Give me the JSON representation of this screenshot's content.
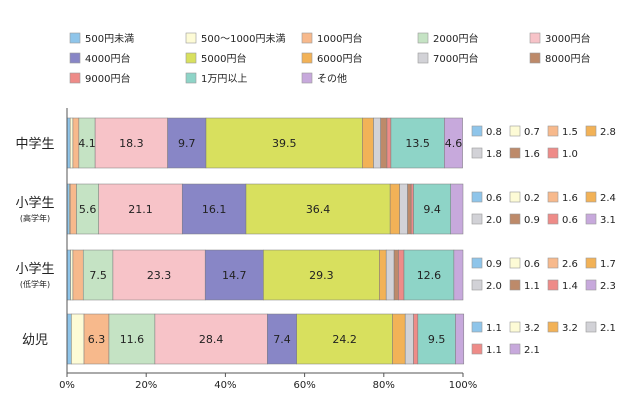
{
  "chart_data": {
    "type": "bar",
    "orientation": "horizontal",
    "stacked": true,
    "xlim": [
      0,
      100
    ],
    "x_ticks": [
      "0%",
      "20%",
      "40%",
      "60%",
      "80%",
      "100%"
    ],
    "series_names": [
      "500円未満",
      "500〜1000円未満",
      "1000円台",
      "2000円台",
      "3000円台",
      "4000円台",
      "5000円台",
      "6000円台",
      "7000円台",
      "8000円台",
      "9000円台",
      "1万円以上",
      "その他"
    ],
    "colors": [
      "#8fc5ea",
      "#fdfbd6",
      "#f7b98c",
      "#c5e3c4",
      "#f7c3c8",
      "#8886c6",
      "#d8e05e",
      "#f2b257",
      "#d2d2d7",
      "#bd8a6a",
      "#ee8b88",
      "#8ed4c7",
      "#c7a9dc"
    ],
    "categories": [
      {
        "name": "中学生",
        "sub": "",
        "values": [
          0.8,
          0.7,
          1.5,
          4.1,
          18.3,
          9.7,
          39.5,
          2.8,
          1.8,
          1.6,
          1.0,
          13.5,
          4.6
        ],
        "side_labels": [
          "0.8",
          "0.7",
          "1.5",
          "2.8",
          "1.8",
          "1.6",
          "1.0"
        ]
      },
      {
        "name": "小学生",
        "sub": "(高学年)",
        "values": [
          0.6,
          0.2,
          1.6,
          5.6,
          21.1,
          16.1,
          36.4,
          2.4,
          2.0,
          0.9,
          0.6,
          9.4,
          3.1
        ],
        "side_labels": [
          "0.6",
          "0.2",
          "1.6",
          "2.4",
          "2.0",
          "0.9",
          "0.6",
          "3.1"
        ]
      },
      {
        "name": "小学生",
        "sub": "(低学年)",
        "values": [
          0.9,
          0.6,
          2.6,
          7.5,
          23.3,
          14.7,
          29.3,
          1.7,
          2.0,
          1.1,
          1.4,
          12.6,
          2.3
        ],
        "side_labels": [
          "0.9",
          "0.6",
          "2.6",
          "1.7",
          "2.0",
          "1.1",
          "1.4",
          "2.3"
        ]
      },
      {
        "name": "幼児",
        "sub": "",
        "values": [
          1.1,
          3.2,
          6.3,
          11.6,
          28.4,
          7.4,
          24.2,
          3.2,
          2.1,
          0.0,
          1.1,
          9.5,
          2.1
        ],
        "side_labels": [
          "1.1",
          "3.2",
          "3.2",
          "2.1",
          "1.1",
          "2.1"
        ]
      }
    ],
    "side_legend_series": [
      [
        0,
        1,
        2,
        7,
        8,
        9,
        10
      ],
      [
        0,
        1,
        2,
        7,
        8,
        9,
        10,
        12
      ],
      [
        0,
        1,
        2,
        7,
        8,
        9,
        10,
        12
      ],
      [
        0,
        1,
        7,
        8,
        10,
        12
      ]
    ]
  }
}
